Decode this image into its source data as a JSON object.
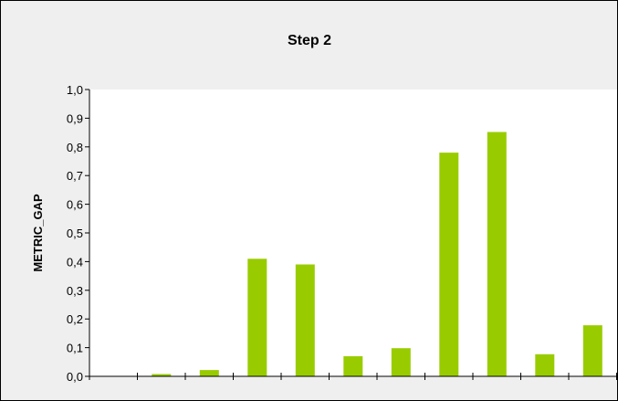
{
  "chart_data": {
    "type": "bar",
    "title": "Step 2",
    "xlabel": "",
    "ylabel": "METRIC_GAP",
    "ylim": [
      0,
      1.0
    ],
    "yticks": [
      "0,0",
      "0,1",
      "0,2",
      "0,3",
      "0,4",
      "0,5",
      "0,6",
      "0,7",
      "0,8",
      "0,9",
      "1,0"
    ],
    "categories": [
      "",
      "",
      "",
      "",
      "",
      "",
      "",
      "",
      "",
      "",
      ""
    ],
    "values": [
      0.0,
      0.008,
      0.022,
      0.41,
      0.39,
      0.07,
      0.098,
      0.78,
      0.852,
      0.077,
      0.178
    ],
    "grid": false,
    "legend": "none",
    "colors": {
      "bar": "#99cc00",
      "frame_bg": "#efefef",
      "plot_bg": "#ffffff",
      "axis": "#000000"
    }
  }
}
